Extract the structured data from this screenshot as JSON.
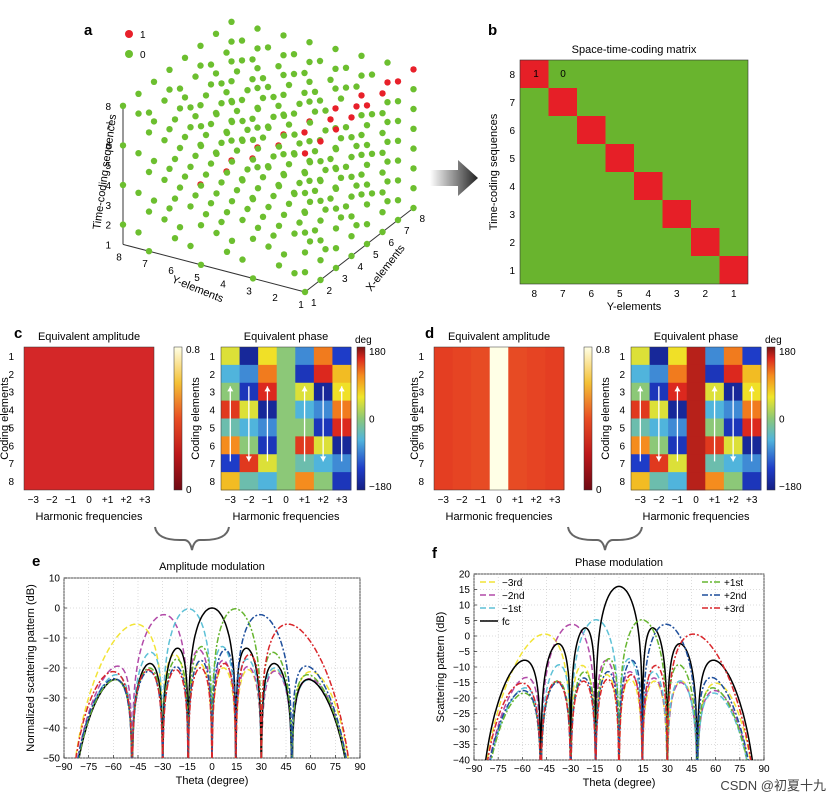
{
  "panel_labels": [
    "a",
    "b",
    "c",
    "d",
    "e",
    "f"
  ],
  "watermark": "CSDN @初夏十九",
  "panel_a": {
    "legend": [
      {
        "label": "1",
        "color": "#e8202a"
      },
      {
        "label": "0",
        "color": "#6cbf2f"
      }
    ],
    "z_axis_label": "Time-coding sequences",
    "y_axis_label": "Y-elements",
    "x_axis_label": "X-elements",
    "ticks": [
      "1",
      "2",
      "3",
      "4",
      "5",
      "6",
      "7",
      "8"
    ]
  },
  "panel_b": {
    "title": "Space-time-coding matrix",
    "ylabel": "Time-coding sequences",
    "xlabel": "Y-elements",
    "row_ticks": [
      "8",
      "7",
      "6",
      "5",
      "4",
      "3",
      "2",
      "1"
    ],
    "col_ticks": [
      "8",
      "7",
      "6",
      "5",
      "4",
      "3",
      "2",
      "1"
    ],
    "cell_labels": {
      "one": "1",
      "zero": "0"
    },
    "colors": {
      "one": "#e61f27",
      "zero": "#69b42e"
    }
  },
  "panel_c": {
    "amp_title": "Equivalent amplitude",
    "phase_title": "Equivalent phase",
    "ylabel": "Coding elements",
    "xlabel": "Harmonic frequencies",
    "row_ticks": [
      "1",
      "2",
      "3",
      "4",
      "5",
      "6",
      "7",
      "8"
    ],
    "col_ticks": [
      "−3",
      "−2",
      "−1",
      "0",
      "+1",
      "+2",
      "+3"
    ],
    "amp_cbar": [
      "0.8",
      "0"
    ],
    "phase_cbar": [
      "180",
      "0",
      "−180"
    ],
    "cbar_unit": "deg"
  },
  "panel_d": {
    "amp_title": "Equivalent amplitude",
    "phase_title": "Equivalent phase",
    "ylabel": "Coding elements",
    "xlabel": "Harmonic frequencies",
    "row_ticks": [
      "1",
      "2",
      "3",
      "4",
      "5",
      "6",
      "7",
      "8"
    ],
    "col_ticks": [
      "−3",
      "−2",
      "−1",
      "0",
      "+1",
      "+2",
      "+3"
    ],
    "amp_cbar": [
      "0.8",
      "0"
    ],
    "phase_cbar": [
      "180",
      "0",
      "−180"
    ],
    "cbar_unit": "deg"
  },
  "chart_data": [
    {
      "type": "line",
      "panel": "e",
      "title": "Amplitude modulation",
      "xlabel": "Theta (degree)",
      "ylabel": "Normalized scattering pattern (dB)",
      "xlim": [
        -90,
        90
      ],
      "ylim": [
        -50,
        10
      ],
      "xticks": [
        "−90",
        "−75",
        "−60",
        "−45",
        "−30",
        "−15",
        "0",
        "15",
        "30",
        "45",
        "60",
        "75",
        "90"
      ],
      "yticks": [
        "10",
        "0",
        "−10",
        "−20",
        "−30",
        "−40",
        "−50"
      ],
      "series": [
        {
          "name": "",
          "peak_theta": -48.6,
          "peak_db": -2,
          "color": "#f2e437",
          "dash": "6,3"
        },
        {
          "name": "",
          "peak_theta": -30,
          "peak_db": -1,
          "color": "#b24aa8",
          "dash": "6,3"
        },
        {
          "name": "",
          "peak_theta": -14.5,
          "peak_db": 0,
          "color": "#5ec1d6",
          "dash": "6,3"
        },
        {
          "name": "",
          "peak_theta": 0,
          "peak_db": 0,
          "color": "#000000",
          "dash": ""
        },
        {
          "name": "",
          "peak_theta": 14.5,
          "peak_db": 0,
          "color": "#67b530",
          "dash": "6,2,2,2"
        },
        {
          "name": "",
          "peak_theta": 30,
          "peak_db": -1,
          "color": "#1f4f9c",
          "dash": "6,2,2,2"
        },
        {
          "name": "",
          "peak_theta": 48.6,
          "peak_db": -2,
          "color": "#d9262b",
          "dash": "6,2,2,2"
        }
      ]
    },
    {
      "type": "line",
      "panel": "f",
      "title": "Phase modulation",
      "xlabel": "Theta (degree)",
      "ylabel": "Scattering pattern (dB)",
      "xlim": [
        -90,
        90
      ],
      "ylim": [
        -40,
        20
      ],
      "xticks": [
        "−90",
        "−75",
        "−60",
        "−45",
        "−30",
        "−15",
        "0",
        "15",
        "30",
        "45",
        "60",
        "75",
        "90"
      ],
      "yticks": [
        "20",
        "15",
        "10",
        "5",
        "0",
        "−5",
        "−10",
        "−15",
        "−20",
        "−25",
        "−30",
        "−35",
        "−40"
      ],
      "legend_position": "top",
      "series": [
        {
          "name": "−3rd",
          "peak_theta": -48.6,
          "peak_db": 4,
          "color": "#f2e437",
          "dash": "6,3"
        },
        {
          "name": "−2nd",
          "peak_theta": -30,
          "peak_db": 5,
          "color": "#b24aa8",
          "dash": "6,3"
        },
        {
          "name": "−1st",
          "peak_theta": -14.5,
          "peak_db": 5.5,
          "color": "#5ec1d6",
          "dash": "6,3"
        },
        {
          "name": "fc",
          "peak_theta": 0,
          "peak_db": 16,
          "color": "#000000",
          "dash": ""
        },
        {
          "name": "+1st",
          "peak_theta": 14.5,
          "peak_db": 5.5,
          "color": "#67b530",
          "dash": "6,2,2,2"
        },
        {
          "name": "+2nd",
          "peak_theta": 30,
          "peak_db": 5,
          "color": "#1f4f9c",
          "dash": "6,2,2,2"
        },
        {
          "name": "+3rd",
          "peak_theta": 48.6,
          "peak_db": 4,
          "color": "#d9262b",
          "dash": "6,2,2,2"
        }
      ]
    }
  ]
}
